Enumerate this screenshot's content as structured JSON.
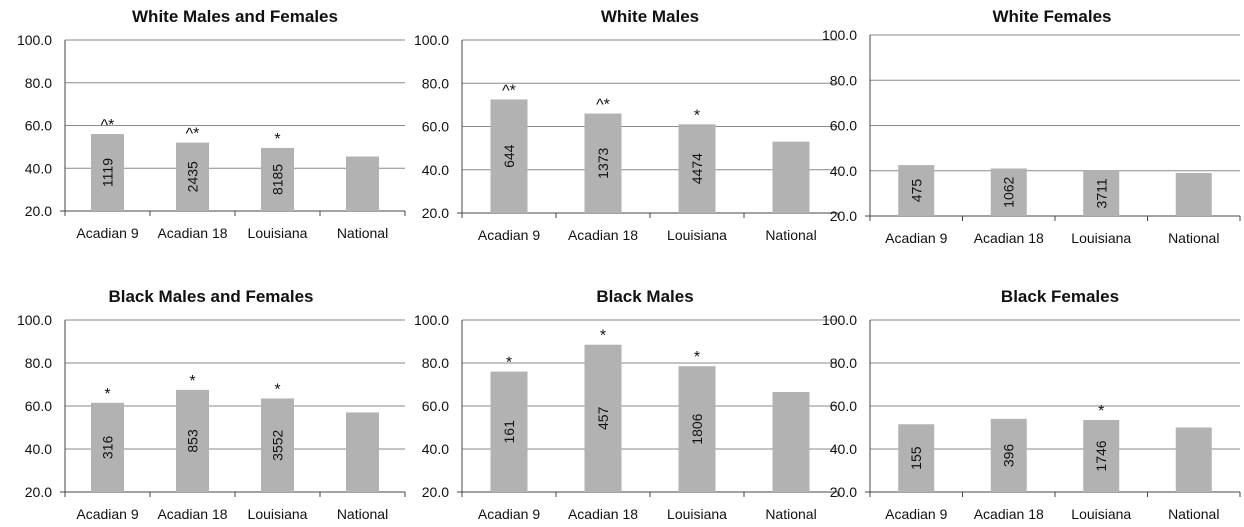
{
  "chart_data": [
    {
      "type": "bar",
      "title": "White Males and Females",
      "categories": [
        "Acadian 9",
        "Acadian 18",
        "Louisiana",
        "National"
      ],
      "values": [
        56.0,
        52.0,
        49.5,
        45.5
      ],
      "data_labels": [
        "1119",
        "2435",
        "8185",
        ""
      ],
      "significance": [
        "^*",
        "^*",
        "*",
        ""
      ],
      "ylim": [
        20,
        100
      ],
      "yticks": [
        "20.0",
        "40.0",
        "60.0",
        "80.0",
        "100.0"
      ],
      "grid": true,
      "bar_color": "#b2b2b2"
    },
    {
      "type": "bar",
      "title": "White Males",
      "categories": [
        "Acadian 9",
        "Acadian 18",
        "Louisiana",
        "National"
      ],
      "values": [
        72.5,
        66.0,
        61.0,
        53.0
      ],
      "data_labels": [
        "644",
        "1373",
        "4474",
        ""
      ],
      "significance": [
        "^*",
        "^*",
        "*",
        ""
      ],
      "ylim": [
        20,
        100
      ],
      "yticks": [
        "20.0",
        "40.0",
        "60.0",
        "80.0",
        "100.0"
      ],
      "grid": true,
      "bar_color": "#b2b2b2"
    },
    {
      "type": "bar",
      "title": "White Females",
      "categories": [
        "Acadian 9",
        "Acadian 18",
        "Louisiana",
        "National"
      ],
      "values": [
        42.5,
        41.0,
        40.0,
        39.0
      ],
      "data_labels": [
        "475",
        "1062",
        "3711",
        ""
      ],
      "significance": [
        "",
        "",
        "",
        ""
      ],
      "ylim": [
        20,
        100
      ],
      "yticks": [
        "20.0",
        "40.0",
        "60.0",
        "80.0",
        "100.0"
      ],
      "grid": true,
      "bar_color": "#b2b2b2"
    },
    {
      "type": "bar",
      "title": "Black Males and Females",
      "categories": [
        "Acadian 9",
        "Acadian 18",
        "Louisiana",
        "National"
      ],
      "values": [
        61.5,
        67.5,
        63.5,
        57.0
      ],
      "data_labels": [
        "316",
        "853",
        "3552",
        ""
      ],
      "significance": [
        "*",
        "*",
        "*",
        ""
      ],
      "ylim": [
        20,
        100
      ],
      "yticks": [
        "20.0",
        "40.0",
        "60.0",
        "80.0",
        "100.0"
      ],
      "grid": true,
      "bar_color": "#b2b2b2"
    },
    {
      "type": "bar",
      "title": "Black Males",
      "categories": [
        "Acadian 9",
        "Acadian 18",
        "Louisiana",
        "National"
      ],
      "values": [
        76.0,
        88.5,
        78.5,
        66.5
      ],
      "data_labels": [
        "161",
        "457",
        "1806",
        ""
      ],
      "significance": [
        "*",
        "*",
        "*",
        ""
      ],
      "ylim": [
        20,
        100
      ],
      "yticks": [
        "20.0",
        "40.0",
        "60.0",
        "80.0",
        "100.0"
      ],
      "grid": true,
      "bar_color": "#b2b2b2"
    },
    {
      "type": "bar",
      "title": "Black Females",
      "categories": [
        "Acadian 9",
        "Acadian 18",
        "Louisiana",
        "National"
      ],
      "values": [
        51.5,
        54.0,
        53.5,
        50.0
      ],
      "data_labels": [
        "155",
        "396",
        "1746",
        ""
      ],
      "significance": [
        "",
        "",
        "*",
        ""
      ],
      "ylim": [
        20,
        100
      ],
      "yticks": [
        "20.0",
        "40.0",
        "60.0",
        "80.0",
        "100.0"
      ],
      "grid": true,
      "bar_color": "#b2b2b2"
    }
  ]
}
